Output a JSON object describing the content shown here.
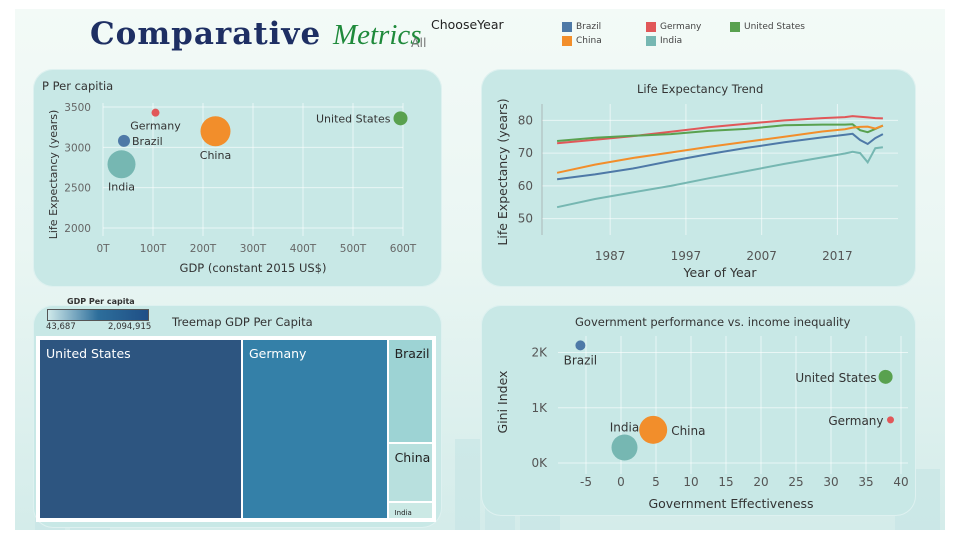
{
  "header": {
    "title_main": "Comparative",
    "title_accent": "Metrics",
    "filter_label": "ChooseYear",
    "filter_value": "All"
  },
  "legend": [
    {
      "name": "Brazil",
      "color": "#4e79a7"
    },
    {
      "name": "Germany",
      "color": "#e15759"
    },
    {
      "name": "United States",
      "color": "#59a14f"
    },
    {
      "name": "China",
      "color": "#f28e2b"
    },
    {
      "name": "India",
      "color": "#76b7b2"
    }
  ],
  "chart_data": [
    {
      "id": "bubble-gdp",
      "type": "scatter",
      "title": "P Per capitia",
      "xlabel": "GDP (constant 2015 US$)",
      "ylabel": "Life Expectancy (years)",
      "xlim": [
        0,
        600
      ],
      "ylim": [
        1900,
        3550
      ],
      "xticks": [
        "0T",
        "100T",
        "200T",
        "300T",
        "400T",
        "500T",
        "600T"
      ],
      "yticks": [
        "2000",
        "2500",
        "3000",
        "3500"
      ],
      "points": [
        {
          "label": "Germany",
          "x": 105,
          "y": 3430,
          "r": 4,
          "color": "#e15759"
        },
        {
          "label": "Brazil",
          "x": 42,
          "y": 3080,
          "r": 6,
          "color": "#4e79a7"
        },
        {
          "label": "China",
          "x": 225,
          "y": 3200,
          "r": 15,
          "color": "#f28e2b"
        },
        {
          "label": "India",
          "x": 37,
          "y": 2790,
          "r": 14,
          "color": "#76b7b2"
        },
        {
          "label": "United States",
          "x": 595,
          "y": 3360,
          "r": 7,
          "color": "#59a14f"
        }
      ]
    },
    {
      "id": "life-expectancy",
      "type": "line",
      "title": "Life Expectancy Trend",
      "xlabel": "Year of Year",
      "ylabel": "Life Expectancy (years)",
      "xlim": [
        1978,
        2025
      ],
      "ylim": [
        45,
        85
      ],
      "xticks": [
        "1987",
        "1997",
        "2007",
        "2017"
      ],
      "yticks": [
        "50",
        "60",
        "70",
        "80"
      ],
      "series": [
        {
          "name": "Germany",
          "color": "#e15759",
          "x": [
            1980,
            1985,
            1990,
            1995,
            2000,
            2005,
            2010,
            2015,
            2018,
            2019,
            2020,
            2021,
            2022,
            2023
          ],
          "y": [
            73,
            74.1,
            75.2,
            76.5,
            77.9,
            79,
            80,
            80.7,
            81,
            81.3,
            81.1,
            80.9,
            80.7,
            80.6
          ]
        },
        {
          "name": "United States",
          "color": "#59a14f",
          "x": [
            1980,
            1985,
            1990,
            1995,
            2000,
            2005,
            2010,
            2015,
            2018,
            2019,
            2020,
            2021,
            2022,
            2023
          ],
          "y": [
            73.7,
            74.7,
            75.3,
            75.8,
            76.8,
            77.4,
            78.5,
            78.7,
            78.7,
            78.8,
            77,
            76.4,
            77.4,
            78.4
          ]
        },
        {
          "name": "China",
          "color": "#f28e2b",
          "x": [
            1980,
            1985,
            1990,
            1995,
            2000,
            2005,
            2010,
            2015,
            2018,
            2019,
            2020,
            2021,
            2022,
            2023
          ],
          "y": [
            64,
            66.5,
            68.5,
            70.2,
            71.9,
            73.5,
            75,
            76.6,
            77.3,
            77.8,
            78,
            78.1,
            77.5,
            78.4
          ]
        },
        {
          "name": "Brazil",
          "color": "#4e79a7",
          "x": [
            1980,
            1985,
            1990,
            1995,
            2000,
            2005,
            2010,
            2015,
            2018,
            2019,
            2020,
            2021,
            2022,
            2023
          ],
          "y": [
            62,
            63.5,
            65.3,
            67.6,
            69.7,
            71.6,
            73.3,
            74.8,
            75.6,
            75.9,
            74,
            72.8,
            74.6,
            75.8
          ]
        },
        {
          "name": "India",
          "color": "#76b7b2",
          "x": [
            1980,
            1985,
            1990,
            1995,
            2000,
            2005,
            2010,
            2015,
            2018,
            2019,
            2020,
            2021,
            2022,
            2023
          ],
          "y": [
            53.5,
            56,
            58,
            60,
            62.3,
            64.5,
            66.7,
            68.7,
            69.9,
            70.4,
            70,
            67.2,
            71.5,
            71.8
          ]
        }
      ]
    },
    {
      "id": "treemap-gdp",
      "type": "treemap",
      "title": "Treemap GDP Per Capita",
      "legend_title": "GDP Per capita",
      "legend_min": "43,687",
      "legend_max": "2,094,915",
      "items": [
        {
          "label": "United States",
          "value": 2094915,
          "color": "#2d5580",
          "text_color": "#ffffff"
        },
        {
          "label": "Germany",
          "value": 1503000,
          "color": "#3480a8",
          "text_color": "#ffffff"
        },
        {
          "label": "Brazil",
          "value": 270000,
          "color": "#9dd3d4",
          "text_color": "#222222"
        },
        {
          "label": "China",
          "value": 155000,
          "color": "#b8e0de",
          "text_color": "#222222"
        },
        {
          "label": "India",
          "value": 43687,
          "color": "#cbe9e5",
          "text_color": "#222222"
        }
      ]
    },
    {
      "id": "gov-inequality",
      "type": "scatter",
      "title": "Government performance vs. income inequality",
      "xlabel": "Government Effectiveness",
      "ylabel": "Gini Index",
      "xlim": [
        -9,
        41
      ],
      "ylim": [
        -200,
        2300
      ],
      "xticks": [
        "-5",
        "0",
        "5",
        "10",
        "15",
        "20",
        "25",
        "30",
        "35",
        "40"
      ],
      "xtick_values": [
        -5,
        0,
        5,
        10,
        15,
        20,
        25,
        30,
        35,
        40
      ],
      "yticks": [
        "0K",
        "1K",
        "2K"
      ],
      "ytick_values": [
        0,
        1000,
        2000
      ],
      "points": [
        {
          "label": "Brazil",
          "x": -5.8,
          "y": 2130,
          "r": 5,
          "color": "#4e79a7"
        },
        {
          "label": "United States",
          "x": 37.8,
          "y": 1560,
          "r": 7,
          "color": "#59a14f"
        },
        {
          "label": "Germany",
          "x": 38.5,
          "y": 780,
          "r": 3.5,
          "color": "#e15759"
        },
        {
          "label": "China",
          "x": 4.6,
          "y": 600,
          "r": 14,
          "color": "#f28e2b"
        },
        {
          "label": "India",
          "x": 0.5,
          "y": 280,
          "r": 13,
          "color": "#76b7b2"
        }
      ]
    }
  ]
}
